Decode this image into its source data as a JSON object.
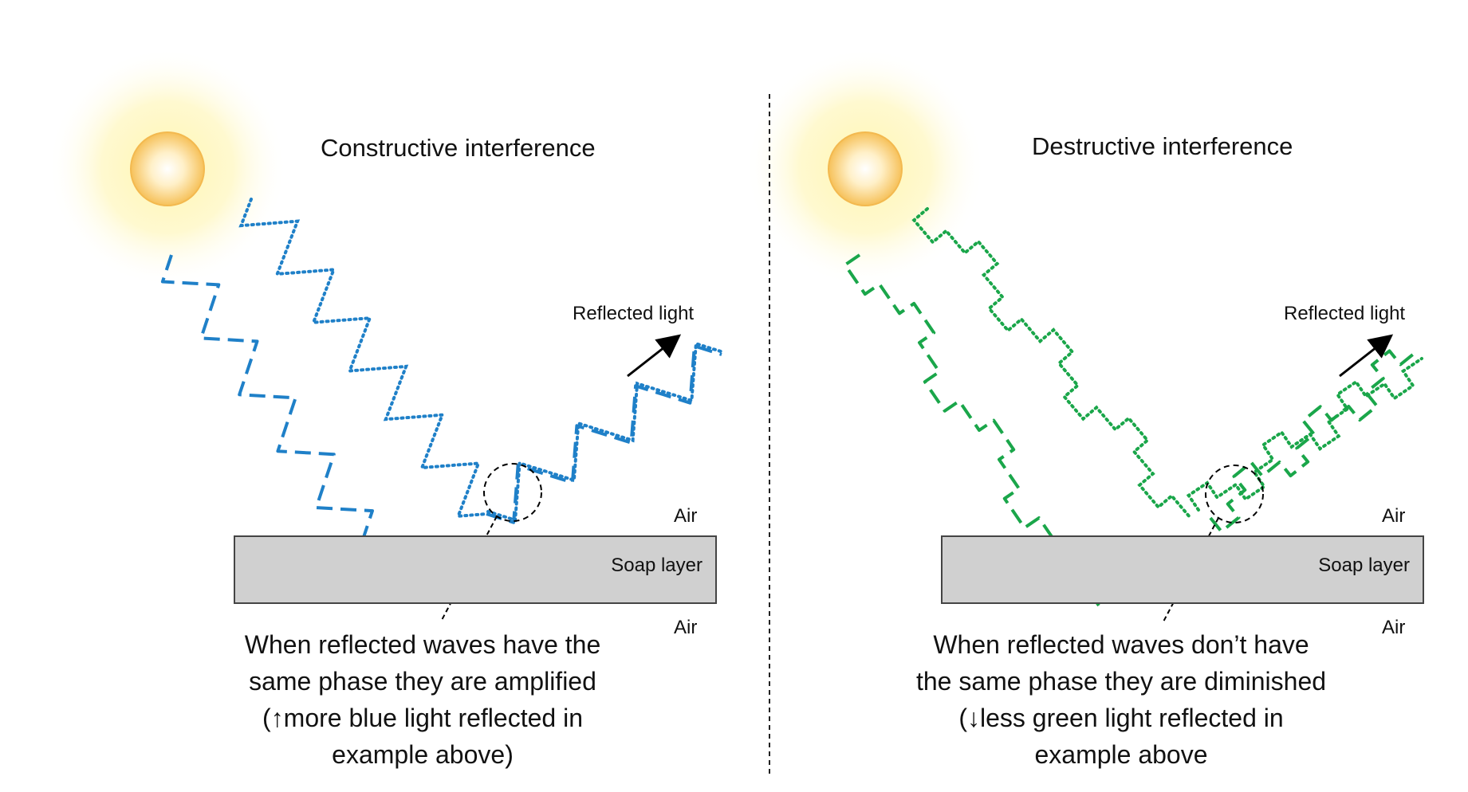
{
  "left_panel": {
    "title": "Constructive interference",
    "reflected_label": "Reflected light",
    "air_top": "Air",
    "soap_label": "Soap layer",
    "air_bottom": "Air",
    "caption": [
      "When reflected waves have the",
      "same phase they are amplified",
      "(↑more blue light reflected in",
      "example above)"
    ],
    "wave_color": "#1f80c8",
    "sun_icon": "sun-icon"
  },
  "right_panel": {
    "title": "Destructive interference",
    "reflected_label": "Reflected light",
    "air_top": "Air",
    "soap_label": "Soap layer",
    "air_bottom": "Air",
    "caption": [
      "When reflected waves don’t have",
      "the same phase they are diminished",
      "(↓less green light reflected in",
      "example above"
    ],
    "wave_color": "#1aa64a",
    "sun_icon": "sun-icon"
  },
  "colors": {
    "soap_fill": "#d0d0d0",
    "sun_core": "#ffd77a",
    "sun_glow": "#fff3a0"
  }
}
